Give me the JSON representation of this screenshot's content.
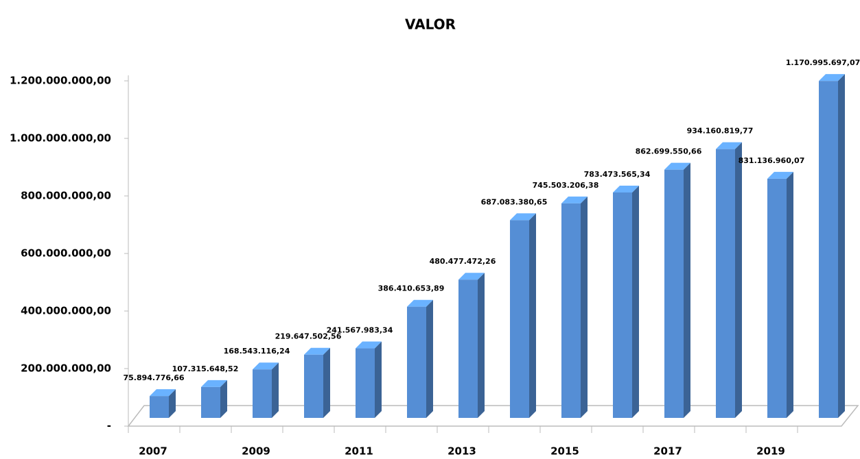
{
  "chart_data": {
    "type": "bar3d",
    "title": "VALOR",
    "categories": [
      "2007",
      null,
      "2009",
      null,
      "2011",
      null,
      "2013",
      null,
      "2015",
      null,
      "2017",
      null,
      "2019",
      null
    ],
    "values": [
      75894776.66,
      107315648.52,
      168543116.24,
      219647502.56,
      241567983.34,
      386410653.89,
      480477472.26,
      687083380.65,
      745503206.38,
      783473565.34,
      862699550.66,
      934160819.77,
      831136960.07,
      1170995697.07
    ],
    "value_labels": [
      "75.894.776,66",
      "107.315.648,52",
      "168.543.116,24",
      "219.647.502,56",
      "241.567.983,34",
      "386.410.653,89",
      "480.477.472,26",
      "687.083.380,65",
      "745.503.206,38",
      "783.473.565,34",
      "862.699.550,66",
      "934.160.819,77",
      "831.136.960,07",
      "1.170.995.697,07"
    ],
    "color": "#558ed5",
    "ylim": [
      0,
      1200000000
    ],
    "yticks": [
      {
        "value": 0,
        "label": "-"
      },
      {
        "value": 200000000,
        "label": "200.000.000,00"
      },
      {
        "value": 400000000,
        "label": "400.000.000,00"
      },
      {
        "value": 600000000,
        "label": "600.000.000,00"
      },
      {
        "value": 800000000,
        "label": "800.000.000,00"
      },
      {
        "value": 1000000000,
        "label": "1.000.000.000,00"
      },
      {
        "value": 1200000000,
        "label": "1.200.000.000,00"
      }
    ],
    "grid": false
  }
}
